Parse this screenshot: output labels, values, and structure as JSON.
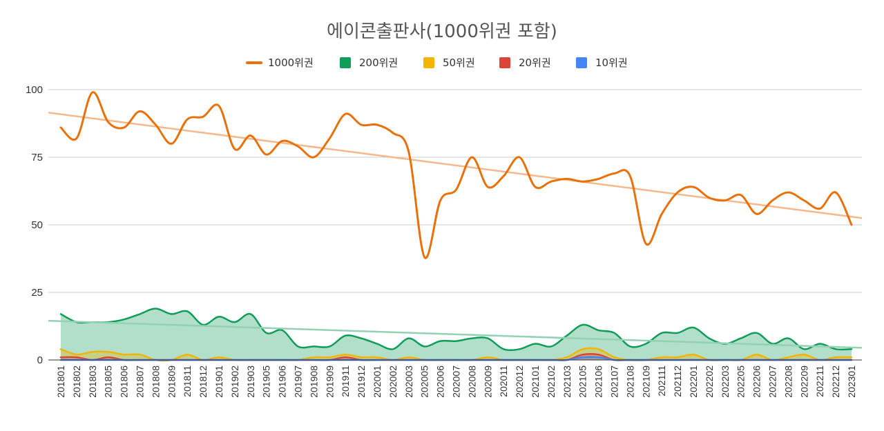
{
  "chart_data": {
    "type": "line+area",
    "title": "에이콘출판사(1000위권 포함)",
    "legend_position": "top",
    "legend": [
      {
        "label": "1000위권",
        "color": "#e8710a",
        "kind": "line"
      },
      {
        "label": "200위권",
        "color": "#0f9d58",
        "kind": "area"
      },
      {
        "label": "50위권",
        "color": "#f4b400",
        "kind": "area"
      },
      {
        "label": "20위권",
        "color": "#db4437",
        "kind": "area"
      },
      {
        "label": "10위권",
        "color": "#4285f4",
        "kind": "area"
      }
    ],
    "ylim": [
      0,
      100
    ],
    "yticks": [
      "0",
      "25",
      "50",
      "75",
      "100"
    ],
    "grid": true,
    "xlabels": [
      "201801",
      "201802",
      "201803",
      "201805",
      "201806",
      "201807",
      "201808",
      "201809",
      "201811",
      "201812",
      "201901",
      "201902",
      "201903",
      "201905",
      "201906",
      "201907",
      "201908",
      "201909",
      "201911",
      "201912",
      "202001",
      "202002",
      "202003",
      "202005",
      "202006",
      "202007",
      "202008",
      "202009",
      "202011",
      "202012",
      "202101",
      "202102",
      "202103",
      "202105",
      "202106",
      "202107",
      "202108",
      "202109",
      "202111",
      "202112",
      "202201",
      "202202",
      "202203",
      "202205",
      "202206",
      "202207",
      "202208",
      "202209",
      "202211",
      "202212",
      "202301"
    ],
    "series": [
      {
        "name": "1000위권",
        "values": [
          86,
          82,
          99,
          88,
          86,
          92,
          87,
          80,
          89,
          90,
          94,
          78,
          83,
          76,
          81,
          79,
          75,
          82,
          91,
          87,
          87,
          84,
          77,
          38,
          59,
          63,
          75,
          64,
          68,
          75,
          64,
          66,
          67,
          66,
          67,
          69,
          68,
          43,
          54,
          62,
          64,
          60,
          59,
          61,
          54,
          59,
          62,
          59,
          56,
          62,
          50
        ]
      },
      {
        "name": "200위권",
        "values": [
          17,
          14,
          14,
          14,
          15,
          17,
          19,
          17,
          18,
          13,
          16,
          14,
          17,
          10,
          11,
          5,
          5,
          5,
          9,
          8,
          6,
          4,
          8,
          5,
          7,
          7,
          8,
          8,
          4,
          4,
          6,
          5,
          9,
          13,
          11,
          10,
          5,
          6,
          10,
          10,
          12,
          8,
          6,
          8,
          10,
          6,
          8,
          4,
          6,
          4,
          4
        ]
      },
      {
        "name": "50위권",
        "values": [
          4,
          2,
          3,
          3,
          2,
          2,
          0,
          0,
          2,
          0,
          1,
          0,
          0,
          0,
          0,
          0,
          1,
          1,
          2,
          1,
          1,
          0,
          1,
          0,
          0,
          0,
          0,
          1,
          0,
          0,
          0,
          0,
          1,
          4,
          4,
          1,
          0,
          0,
          1,
          1,
          2,
          0,
          0,
          0,
          2,
          0,
          1,
          2,
          0,
          1,
          1
        ]
      },
      {
        "name": "20위권",
        "values": [
          1,
          1,
          0,
          1,
          0,
          0,
          0,
          0,
          0,
          0,
          0,
          0,
          0,
          0,
          0,
          0,
          0,
          0,
          1,
          0,
          0,
          0,
          0,
          0,
          0,
          0,
          0,
          0,
          0,
          0,
          0,
          0,
          0,
          2,
          2,
          0,
          0,
          0,
          0,
          0,
          0,
          0,
          0,
          0,
          0,
          0,
          0,
          0,
          0,
          0,
          0
        ]
      },
      {
        "name": "10위권",
        "values": [
          0,
          0,
          0,
          0,
          0,
          0,
          0,
          0,
          0,
          0,
          0,
          0,
          0,
          0,
          0,
          0,
          0,
          0,
          0,
          0,
          0,
          0,
          0,
          0,
          0,
          0,
          0,
          0,
          0,
          0,
          0,
          0,
          0,
          1,
          1,
          0,
          0,
          0,
          0,
          0,
          0,
          0,
          0,
          0,
          0,
          0,
          0,
          0,
          0,
          0,
          0
        ]
      }
    ],
    "trendlines": [
      {
        "series": "1000위권",
        "start": 91.5,
        "end": 52.5,
        "color": "#f5b78b"
      },
      {
        "series": "200위권",
        "start": 14.5,
        "end": 4.5,
        "color": "#93d1b3"
      }
    ]
  }
}
